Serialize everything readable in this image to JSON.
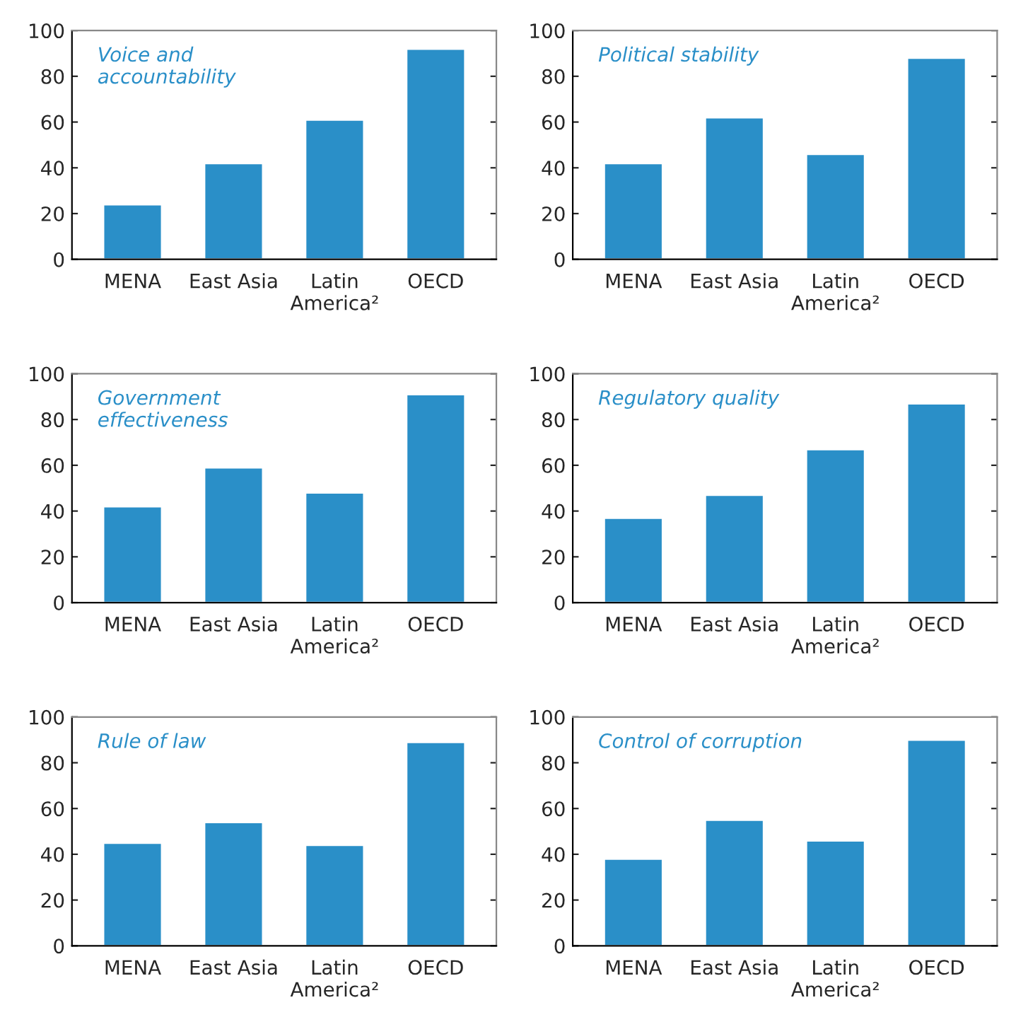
{
  "chart_data": [
    {
      "type": "bar",
      "title": "Voice and\naccountability",
      "categories": [
        "MENA",
        "East Asia",
        "Latin\nAmerica²",
        "OECD"
      ],
      "values": [
        24,
        42,
        61,
        92
      ],
      "color": "#2a8fc8",
      "ylim": [
        0,
        100
      ],
      "yticks": [
        0,
        20,
        40,
        60,
        80,
        100
      ],
      "grid": false
    },
    {
      "type": "bar",
      "title": "Political stability",
      "categories": [
        "MENA",
        "East Asia",
        "Latin\nAmerica²",
        "OECD"
      ],
      "values": [
        42,
        62,
        46,
        88
      ],
      "color": "#2a8fc8",
      "ylim": [
        0,
        100
      ],
      "yticks": [
        0,
        20,
        40,
        60,
        80,
        100
      ],
      "grid": false
    },
    {
      "type": "bar",
      "title": "Government\neffectiveness",
      "categories": [
        "MENA",
        "East Asia",
        "Latin\nAmerica²",
        "OECD"
      ],
      "values": [
        42,
        59,
        48,
        91
      ],
      "color": "#2a8fc8",
      "ylim": [
        0,
        100
      ],
      "yticks": [
        0,
        20,
        40,
        60,
        80,
        100
      ],
      "grid": false
    },
    {
      "type": "bar",
      "title": "Regulatory quality",
      "categories": [
        "MENA",
        "East Asia",
        "Latin\nAmerica²",
        "OECD"
      ],
      "values": [
        37,
        47,
        67,
        87
      ],
      "color": "#2a8fc8",
      "ylim": [
        0,
        100
      ],
      "yticks": [
        0,
        20,
        40,
        60,
        80,
        100
      ],
      "grid": false
    },
    {
      "type": "bar",
      "title": "Rule of law",
      "categories": [
        "MENA",
        "East Asia",
        "Latin\nAmerica²",
        "OECD"
      ],
      "values": [
        45,
        54,
        44,
        89
      ],
      "color": "#2a8fc8",
      "ylim": [
        0,
        100
      ],
      "yticks": [
        0,
        20,
        40,
        60,
        80,
        100
      ],
      "grid": false
    },
    {
      "type": "bar",
      "title": "Control of corruption",
      "categories": [
        "MENA",
        "East Asia",
        "Latin\nAmerica²",
        "OECD"
      ],
      "values": [
        38,
        55,
        46,
        90
      ],
      "color": "#2a8fc8",
      "ylim": [
        0,
        100
      ],
      "yticks": [
        0,
        20,
        40,
        60,
        80,
        100
      ],
      "grid": false
    }
  ]
}
